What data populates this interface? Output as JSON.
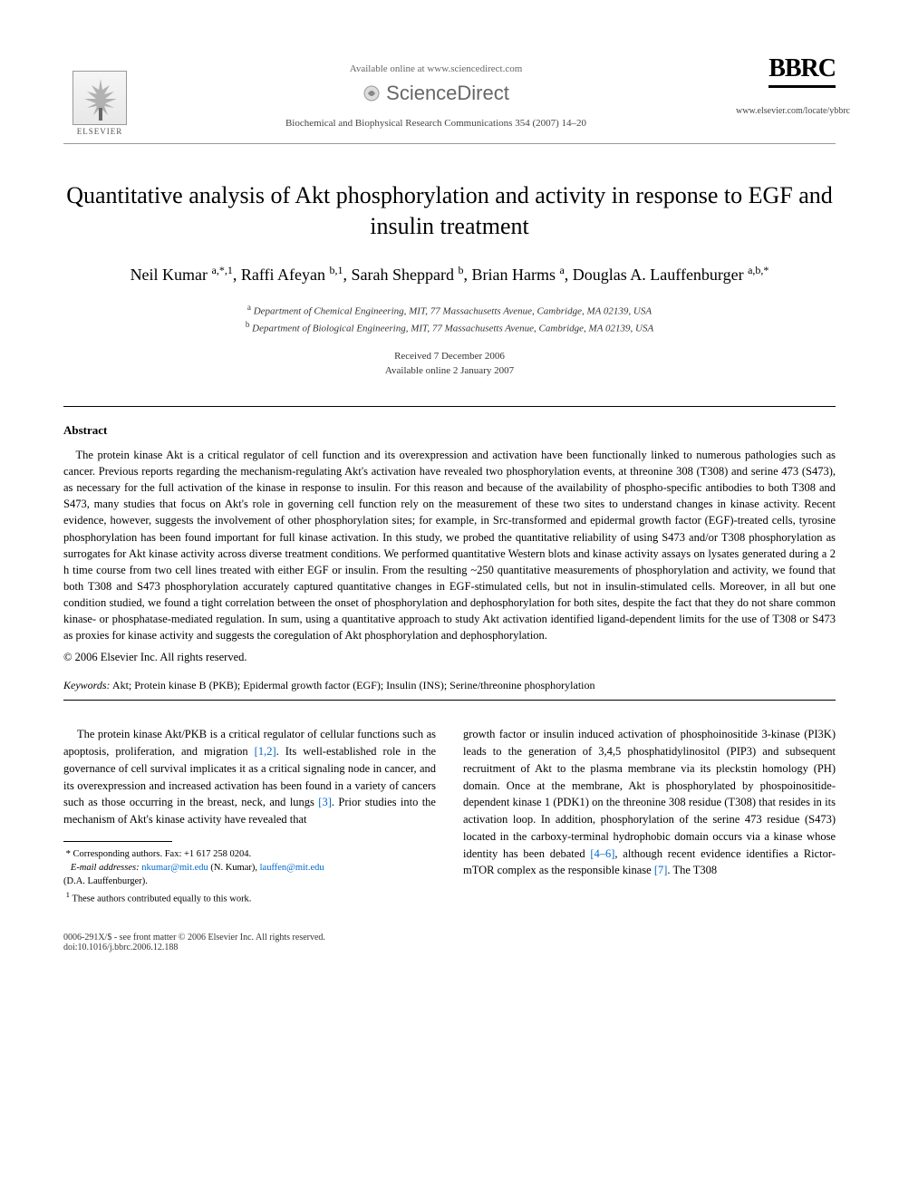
{
  "header": {
    "available_online": "Available online at www.sciencedirect.com",
    "sciencedirect": "ScienceDirect",
    "journal_ref": "Biochemical and Biophysical Research Communications 354 (2007) 14–20",
    "bbrc": "BBRC",
    "journal_url": "www.elsevier.com/locate/ybbrc",
    "elsevier_label": "ELSEVIER"
  },
  "title": "Quantitative analysis of Akt phosphorylation and activity in response to EGF and insulin treatment",
  "authors_html": "Neil Kumar <sup>a,*,1</sup>, Raffi Afeyan <sup>b,1</sup>, Sarah Sheppard <sup>b</sup>, Brian Harms <sup>a</sup>, Douglas A. Lauffenburger <sup>a,b,*</sup>",
  "affiliations": {
    "a": "Department of Chemical Engineering, MIT, 77 Massachusetts Avenue, Cambridge, MA 02139, USA",
    "b": "Department of Biological Engineering, MIT, 77 Massachusetts Avenue, Cambridge, MA 02139, USA"
  },
  "dates": {
    "received": "Received 7 December 2006",
    "online": "Available online 2 January 2007"
  },
  "abstract": {
    "heading": "Abstract",
    "body": "The protein kinase Akt is a critical regulator of cell function and its overexpression and activation have been functionally linked to numerous pathologies such as cancer. Previous reports regarding the mechanism-regulating Akt's activation have revealed two phosphorylation events, at threonine 308 (T308) and serine 473 (S473), as necessary for the full activation of the kinase in response to insulin. For this reason and because of the availability of phospho-specific antibodies to both T308 and S473, many studies that focus on Akt's role in governing cell function rely on the measurement of these two sites to understand changes in kinase activity. Recent evidence, however, suggests the involvement of other phosphorylation sites; for example, in Src-transformed and epidermal growth factor (EGF)-treated cells, tyrosine phosphorylation has been found important for full kinase activation. In this study, we probed the quantitative reliability of using S473 and/or T308 phosphorylation as surrogates for Akt kinase activity across diverse treatment conditions. We performed quantitative Western blots and kinase activity assays on lysates generated during a 2 h time course from two cell lines treated with either EGF or insulin. From the resulting ~250 quantitative measurements of phosphorylation and activity, we found that both T308 and S473 phosphorylation accurately captured quantitative changes in EGF-stimulated cells, but not in insulin-stimulated cells. Moreover, in all but one condition studied, we found a tight correlation between the onset of phosphorylation and dephosphorylation for both sites, despite the fact that they do not share common kinase- or phosphatase-mediated regulation. In sum, using a quantitative approach to study Akt activation identified ligand-dependent limits for the use of T308 or S473 as proxies for kinase activity and suggests the coregulation of Akt phosphorylation and dephosphorylation.",
    "copyright": "© 2006 Elsevier Inc. All rights reserved."
  },
  "keywords": {
    "label": "Keywords:",
    "text": "Akt; Protein kinase B (PKB); Epidermal growth factor (EGF); Insulin (INS); Serine/threonine phosphorylation"
  },
  "body": {
    "left": "The protein kinase Akt/PKB is a critical regulator of cellular functions such as apoptosis, proliferation, and migration [1,2]. Its well-established role in the governance of cell survival implicates it as a critical signaling node in cancer, and its overexpression and increased activation has been found in a variety of cancers such as those occurring in the breast, neck, and lungs [3]. Prior studies into the mechanism of Akt's kinase activity have revealed that",
    "right": "growth factor or insulin induced activation of phosphoinositide 3-kinase (PI3K) leads to the generation of 3,4,5 phosphatidylinositol (PIP3) and subsequent recruitment of Akt to the plasma membrane via its pleckstin homology (PH) domain. Once at the membrane, Akt is phosphorylated by phospoinositide-dependent kinase 1 (PDK1) on the threonine 308 residue (T308) that resides in its activation loop. In addition, phosphorylation of the serine 473 residue (S473) located in the carboxy-terminal hydrophobic domain occurs via a kinase whose identity has been debated [4–6], although recent evidence identifies a Rictor-mTOR complex as the responsible kinase [7]. The T308"
  },
  "footnotes": {
    "corresponding": "Corresponding authors. Fax: +1 617 258 0204.",
    "email_label": "E-mail addresses:",
    "email1": "nkumar@mit.edu",
    "email1_name": "(N. Kumar),",
    "email2": "lauffen@mit.edu",
    "email2_name": "(D.A. Lauffenburger).",
    "equal": "These authors contributed equally to this work."
  },
  "bottom": {
    "left_line1": "0006-291X/$ - see front matter © 2006 Elsevier Inc. All rights reserved.",
    "left_line2": "doi:10.1016/j.bbrc.2006.12.188"
  },
  "refs": {
    "r12": "[1,2]",
    "r3": "[3]",
    "r46": "[4–6]",
    "r7": "[7]"
  }
}
